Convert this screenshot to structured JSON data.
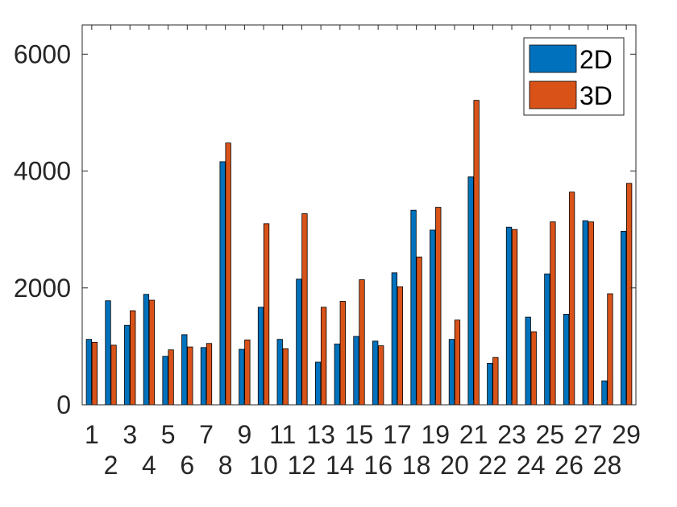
{
  "chart_data": {
    "type": "bar",
    "categories": [
      "1",
      "2",
      "3",
      "4",
      "5",
      "6",
      "7",
      "8",
      "9",
      "10",
      "11",
      "12",
      "13",
      "14",
      "15",
      "16",
      "17",
      "18",
      "19",
      "20",
      "21",
      "22",
      "23",
      "24",
      "25",
      "26",
      "27",
      "28",
      "29"
    ],
    "series": [
      {
        "name": "2D",
        "color": "#0072BD",
        "values": [
          1120,
          1780,
          1360,
          1890,
          830,
          1200,
          980,
          4160,
          950,
          1670,
          1120,
          2150,
          730,
          1040,
          1170,
          1090,
          2260,
          3330,
          2990,
          1120,
          3900,
          710,
          3040,
          1500,
          2240,
          1550,
          3150,
          410,
          2970
        ]
      },
      {
        "name": "3D",
        "color": "#D95319",
        "values": [
          1070,
          1020,
          1610,
          1790,
          940,
          990,
          1050,
          4480,
          1110,
          3100,
          960,
          3270,
          1670,
          1770,
          2140,
          1010,
          2020,
          2530,
          3380,
          1450,
          5210,
          810,
          3000,
          1250,
          3130,
          3640,
          3130,
          1900,
          3790
        ]
      }
    ],
    "ylim": [
      0,
      6500
    ],
    "yticks": [
      0,
      2000,
      4000,
      6000
    ],
    "ytick_labels": [
      "0",
      "2000",
      "4000",
      "6000"
    ],
    "xlabel": "",
    "ylabel": "",
    "title": "",
    "grid": false,
    "legend_position": "top-right"
  }
}
